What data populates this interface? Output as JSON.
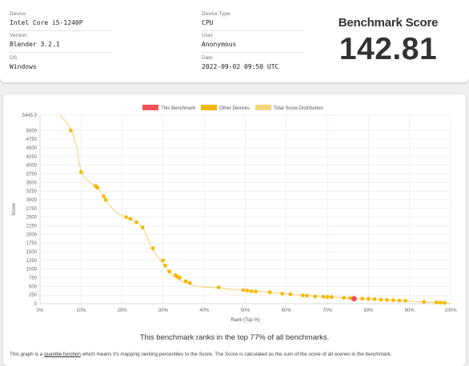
{
  "info": {
    "device_label": "Device",
    "device_value": "Intel Core i5-1240P",
    "device_type_label": "Device Type",
    "device_type_value": "CPU",
    "version_label": "Version",
    "version_value": "Blender 3.2.1",
    "user_label": "User",
    "user_value": "Anonymous",
    "os_label": "OS",
    "os_value": "Windows",
    "date_label": "Date",
    "date_value": "2022-09-02 09:50 UTC"
  },
  "score": {
    "title": "Benchmark Score",
    "value": "142.81"
  },
  "colors": {
    "this_benchmark": "#f0505a",
    "other_devices": "#f5b800",
    "distribution": "#f7d37a"
  },
  "chart_data": {
    "type": "line",
    "xlabel": "Rank (Top %)",
    "ylabel": "Score",
    "xlim": [
      0,
      100
    ],
    "ylim": [
      0,
      5445.3
    ],
    "grid": true,
    "legend_position": "top",
    "x_ticks": [
      0,
      10,
      20,
      30,
      40,
      50,
      60,
      70,
      80,
      90,
      100
    ],
    "x_tick_labels": [
      "0%",
      "10%",
      "20%",
      "30%",
      "40%",
      "50%",
      "60%",
      "70%",
      "80%",
      "90%",
      "100%"
    ],
    "y_ticks": [
      0,
      250,
      500,
      750,
      1000,
      1250,
      1500,
      1750,
      2000,
      2250,
      2500,
      2750,
      3000,
      3250,
      3500,
      3750,
      4000,
      4250,
      4500,
      4750,
      5000,
      5445.3
    ],
    "y_tick_labels": [
      "0",
      "250",
      "500",
      "750",
      "1000",
      "1250",
      "1500",
      "1750",
      "2000",
      "2250",
      "2500",
      "2750",
      "3000",
      "3250",
      "3500",
      "3750",
      "4000",
      "4250",
      "4500",
      "4750",
      "5000",
      "5445.3"
    ],
    "legend": [
      "This Benchmark",
      "Other Devices",
      "Total Score Distribution"
    ],
    "distribution_curve": [
      [
        5,
        5445
      ],
      [
        6,
        5300
      ],
      [
        7,
        5150
      ],
      [
        8,
        4900
      ],
      [
        9,
        4500
      ],
      [
        9.5,
        4100
      ],
      [
        10,
        3800
      ],
      [
        11,
        3620
      ],
      [
        12,
        3520
      ],
      [
        13,
        3420
      ],
      [
        14,
        3360
      ],
      [
        15,
        3200
      ],
      [
        16,
        2970
      ],
      [
        17,
        2830
      ],
      [
        18,
        2700
      ],
      [
        19,
        2600
      ],
      [
        20,
        2550
      ],
      [
        21,
        2500
      ],
      [
        22,
        2450
      ],
      [
        23,
        2390
      ],
      [
        24,
        2320
      ],
      [
        25,
        2200
      ],
      [
        26,
        1950
      ],
      [
        27,
        1650
      ],
      [
        28,
        1450
      ],
      [
        29,
        1300
      ],
      [
        30,
        1150
      ],
      [
        31,
        960
      ],
      [
        32,
        850
      ],
      [
        33,
        760
      ],
      [
        34,
        680
      ],
      [
        35,
        620
      ],
      [
        36,
        570
      ],
      [
        38,
        510
      ],
      [
        40,
        480
      ],
      [
        43,
        460
      ],
      [
        46,
        420
      ],
      [
        50,
        380
      ],
      [
        55,
        340
      ],
      [
        60,
        280
      ],
      [
        65,
        230
      ],
      [
        70,
        200
      ],
      [
        75,
        160
      ],
      [
        80,
        130
      ],
      [
        85,
        100
      ],
      [
        90,
        70
      ],
      [
        95,
        40
      ],
      [
        98,
        20
      ],
      [
        100,
        5
      ]
    ],
    "other_devices": [
      [
        7.5,
        5000
      ],
      [
        10,
        3800
      ],
      [
        13.5,
        3400
      ],
      [
        14,
        3350
      ],
      [
        15.5,
        3100
      ],
      [
        16,
        3000
      ],
      [
        21,
        2500
      ],
      [
        22,
        2450
      ],
      [
        23.5,
        2350
      ],
      [
        25,
        2200
      ],
      [
        27.5,
        1600
      ],
      [
        30,
        1250
      ],
      [
        30.5,
        1100
      ],
      [
        31.5,
        930
      ],
      [
        33,
        820
      ],
      [
        33.5,
        780
      ],
      [
        34,
        750
      ],
      [
        35.5,
        650
      ],
      [
        36.5,
        600
      ],
      [
        43.5,
        470
      ],
      [
        49.5,
        390
      ],
      [
        50.5,
        380
      ],
      [
        51.5,
        360
      ],
      [
        52.5,
        350
      ],
      [
        56,
        330
      ],
      [
        59,
        290
      ],
      [
        61,
        270
      ],
      [
        64,
        240
      ],
      [
        65,
        230
      ],
      [
        67,
        210
      ],
      [
        69,
        200
      ],
      [
        70,
        195
      ],
      [
        71,
        190
      ],
      [
        74,
        170
      ],
      [
        75.5,
        160
      ],
      [
        78.5,
        145
      ],
      [
        80,
        140
      ],
      [
        81.5,
        130
      ],
      [
        83,
        115
      ],
      [
        84.5,
        110
      ],
      [
        86,
        100
      ],
      [
        87.5,
        90
      ],
      [
        89,
        85
      ],
      [
        93.5,
        50
      ],
      [
        96.5,
        35
      ],
      [
        97.5,
        30
      ],
      [
        98.5,
        25
      ]
    ],
    "this_benchmark": [
      [
        76.5,
        142.81
      ]
    ]
  },
  "footer": {
    "rank_sentence": "This benchmark ranks in the top 77% of all benchmarks.",
    "note_prefix": "This graph is a",
    "note_link": "quantile function",
    "note_suffix": "which means it's mapping ranking percentiles to the Score. The Score is calculated as the sum of the score of all scenes in the benchmark."
  }
}
